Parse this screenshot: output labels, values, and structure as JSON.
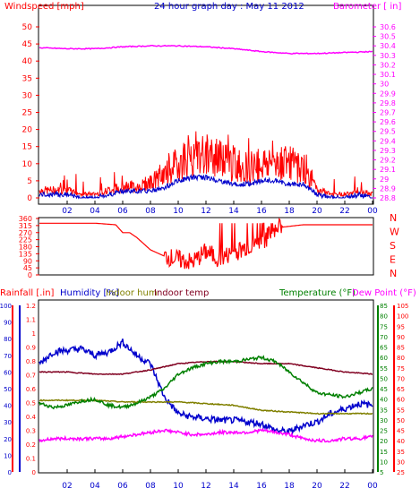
{
  "header": {
    "left": "Windspeed [mph]",
    "center": "24 hour graph day : May 11 2012",
    "right": "Barometer [ in]"
  },
  "middle": {
    "dir_labels": [
      "N",
      "W",
      "S",
      "E",
      "N"
    ]
  },
  "bottom_header": {
    "rain": "Rainfall [.in]",
    "hum": "Humidity [%]",
    "inhum": "Indoor hum",
    "intemp": "Indoor temp",
    "temp": "Temperature (°F)",
    "dew": "Dew Point (°F)"
  },
  "colors": {
    "wind": "#ff0000",
    "wind_avg": "#0000cc",
    "baro": "#ff00ff",
    "hum": "#0000cc",
    "inhum": "#808000",
    "intemp": "#800020",
    "temp": "#008000",
    "dew": "#ff00ff",
    "rain": "#ff0000"
  },
  "chart_data": [
    {
      "type": "line",
      "panel": "wind-barometer",
      "title": "24 hour graph day : May 11 2012",
      "xlabel": "",
      "x_ticks": [
        "02",
        "04",
        "06",
        "08",
        "10",
        "12",
        "14",
        "16",
        "18",
        "20",
        "22",
        "00"
      ],
      "left_axis": {
        "label": "Windspeed [mph]",
        "ticks": [
          0,
          5,
          10,
          15,
          20,
          25,
          30,
          35,
          40,
          45,
          50
        ],
        "range": [
          0,
          50
        ]
      },
      "right_axis": {
        "label": "Barometer [ in]",
        "ticks": [
          "28.8",
          "28.9",
          "29",
          "29.1",
          "29.2",
          "29.3",
          "29.4",
          "29.5",
          "29.6",
          "29.7",
          "29.8",
          "29.9",
          "30",
          "30.1",
          "30.2",
          "30.3",
          "30.4",
          "30.5",
          "30.6"
        ],
        "range": [
          28.8,
          30.6
        ]
      },
      "series": [
        {
          "name": "Windspeed [mph]",
          "axis": "left",
          "x": [
            0,
            1,
            2,
            3,
            4,
            5,
            6,
            7,
            8,
            9,
            10,
            11,
            12,
            13,
            14,
            15,
            16,
            17,
            18,
            19,
            20,
            21,
            22,
            23,
            24
          ],
          "values": [
            2,
            2,
            2,
            1,
            1,
            2,
            3,
            3,
            4,
            6,
            9,
            12,
            11,
            10,
            9,
            8,
            9,
            10,
            9,
            8,
            2,
            1,
            1,
            2,
            1
          ]
        },
        {
          "name": "Wind average",
          "axis": "left",
          "x": [
            0,
            1,
            2,
            3,
            4,
            5,
            6,
            7,
            8,
            9,
            10,
            11,
            12,
            13,
            14,
            15,
            16,
            17,
            18,
            19,
            20,
            21,
            22,
            23,
            24
          ],
          "values": [
            1,
            1,
            1,
            0,
            0,
            1,
            2,
            2,
            2,
            3,
            5,
            6,
            6,
            5,
            4,
            4,
            5,
            5,
            4,
            4,
            1,
            0,
            0,
            1,
            0
          ]
        },
        {
          "name": "Barometer [ in]",
          "axis": "right",
          "x": [
            0,
            2,
            4,
            6,
            8,
            10,
            12,
            14,
            16,
            18,
            20,
            22,
            24
          ],
          "values": [
            30.38,
            30.37,
            30.37,
            30.39,
            30.4,
            30.4,
            30.39,
            30.37,
            30.34,
            30.32,
            30.32,
            30.33,
            30.34
          ]
        }
      ]
    },
    {
      "type": "line",
      "panel": "wind-direction",
      "x_ticks": [
        "02",
        "04",
        "06",
        "08",
        "10",
        "12",
        "14",
        "16",
        "18",
        "20",
        "22",
        "00"
      ],
      "left_axis": {
        "ticks": [
          0,
          45,
          90,
          135,
          180,
          225,
          270,
          315,
          360
        ],
        "range": [
          0,
          360
        ]
      },
      "series": [
        {
          "name": "Wind direction",
          "x": [
            0,
            2,
            4,
            5.5,
            6,
            6.5,
            7,
            8,
            9,
            10,
            11,
            12,
            13,
            14,
            15,
            16,
            17,
            18,
            19,
            20,
            22,
            24
          ],
          "values": [
            330,
            330,
            330,
            320,
            270,
            270,
            240,
            160,
            120,
            100,
            80,
            150,
            100,
            140,
            180,
            200,
            300,
            310,
            320,
            320,
            320,
            320
          ]
        }
      ]
    },
    {
      "type": "line",
      "panel": "humidity-temperature",
      "x_ticks": [
        "02",
        "04",
        "06",
        "08",
        "10",
        "12",
        "14",
        "16",
        "18",
        "20",
        "22",
        "00"
      ],
      "axes": [
        {
          "label": "Rainfall [.in]",
          "ticks": [
            "0",
            "0.1",
            "0.2",
            "0.3",
            "0.4",
            "0.5",
            "0.6",
            "0.7",
            "0.8",
            "0.9",
            "1",
            "1.1",
            "1.2"
          ],
          "range": [
            0,
            1.2
          ]
        },
        {
          "label": "Humidity [%]",
          "ticks": [
            0,
            10,
            20,
            30,
            40,
            50,
            60,
            70,
            80,
            90,
            100
          ],
          "range": [
            0,
            100
          ]
        },
        {
          "label": "Temperature (°F)",
          "ticks": [
            5,
            10,
            15,
            20,
            25,
            30,
            35,
            40,
            45,
            50,
            55,
            60,
            65,
            70,
            75,
            80,
            85
          ],
          "range": [
            5,
            85
          ]
        },
        {
          "label": "Dew Point (°F)",
          "ticks": [
            25,
            30,
            35,
            40,
            45,
            50,
            55,
            60,
            65,
            70,
            75,
            80,
            85,
            90,
            95,
            100,
            105
          ],
          "range": [
            25,
            105
          ]
        }
      ],
      "series": [
        {
          "name": "Humidity [%]",
          "axis": "hum",
          "x": [
            0,
            1,
            2,
            3,
            4,
            5,
            6,
            7,
            8,
            9,
            10,
            11,
            12,
            13,
            14,
            15,
            16,
            17,
            18,
            19,
            20,
            21,
            22,
            23,
            24
          ],
          "values": [
            65,
            72,
            73,
            74,
            70,
            72,
            78,
            70,
            65,
            45,
            35,
            33,
            32,
            31,
            31,
            30,
            29,
            25,
            24,
            28,
            30,
            35,
            38,
            41,
            40
          ]
        },
        {
          "name": "Indoor hum",
          "axis": "hum",
          "x": [
            0,
            2,
            4,
            6,
            8,
            10,
            12,
            14,
            16,
            18,
            20,
            22,
            24
          ],
          "values": [
            43,
            43,
            43,
            42,
            42,
            42,
            41,
            40,
            37,
            36,
            35,
            35,
            35
          ]
        },
        {
          "name": "Indoor temp",
          "axis": "temp",
          "x": [
            0,
            2,
            4,
            6,
            8,
            10,
            12,
            14,
            16,
            18,
            20,
            22,
            24
          ],
          "values": [
            53,
            53,
            52,
            52,
            54,
            57,
            58,
            58,
            57,
            57,
            55,
            53,
            52
          ]
        },
        {
          "name": "Temperature (°F)",
          "axis": "temp",
          "x": [
            0,
            1,
            2,
            3,
            4,
            5,
            6,
            7,
            8,
            9,
            10,
            11,
            12,
            13,
            14,
            15,
            16,
            17,
            18,
            19,
            20,
            21,
            22,
            23,
            24
          ],
          "values": [
            38,
            36,
            37,
            39,
            40,
            37,
            36,
            38,
            41,
            45,
            52,
            55,
            57,
            58,
            58,
            59,
            60,
            58,
            53,
            48,
            43,
            42,
            41,
            43,
            45
          ]
        },
        {
          "name": "Dew Point (°F)",
          "axis": "dew",
          "x": [
            0,
            1,
            2,
            3,
            4,
            5,
            6,
            7,
            8,
            9,
            10,
            11,
            12,
            13,
            14,
            15,
            16,
            17,
            18,
            19,
            20,
            21,
            22,
            23,
            24
          ],
          "values": [
            40,
            41,
            41,
            41,
            41,
            41,
            42,
            43,
            44,
            45,
            44,
            43,
            43,
            44,
            44,
            44,
            45,
            44,
            43,
            41,
            40,
            40,
            41,
            41,
            42
          ]
        }
      ]
    }
  ]
}
